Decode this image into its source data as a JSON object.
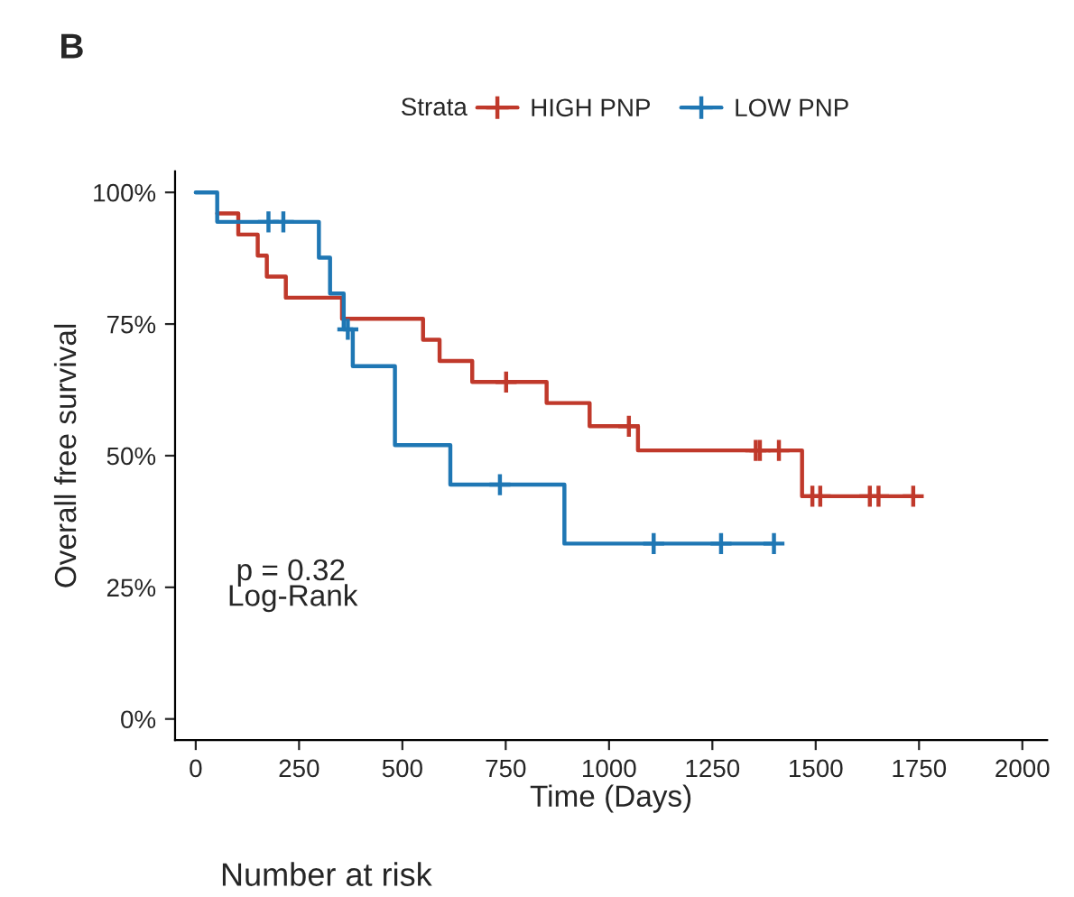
{
  "chart_data": {
    "type": "step",
    "title": "B",
    "xlabel": "Time (Days)",
    "ylabel": "Overall free survival",
    "legend_title": "Strata",
    "legend": "top",
    "annotations": [
      "p = 0.32",
      "Log-Rank",
      "Number at risk"
    ],
    "xlim": [
      -50,
      2060
    ],
    "xticks": [
      0,
      250,
      500,
      750,
      1000,
      1250,
      1500,
      1750,
      2000
    ],
    "ylim": [
      -4,
      104
    ],
    "yticks": [
      {
        "value": 0,
        "label": "0%"
      },
      {
        "value": 25,
        "label": "25%"
      },
      {
        "value": 50,
        "label": "50%"
      },
      {
        "value": 75,
        "label": "75%"
      },
      {
        "value": 100,
        "label": "100%"
      }
    ],
    "grid": false,
    "line_style": "solid",
    "series": [
      {
        "name": "HIGH PNP",
        "color": "#c0392b",
        "marker": "none",
        "x": [
          52,
          103,
          150,
          172,
          218,
          354,
          550,
          590,
          669,
          849,
          953,
          1070,
          1467,
          1740
        ],
        "values": [
          96,
          92,
          88,
          84,
          80,
          76,
          72,
          68,
          64,
          60,
          55.6,
          51,
          42.3,
          42.3
        ]
      },
      {
        "name": "LOW PNP",
        "color": "#1f77b4",
        "marker": "none",
        "x": [
          0,
          52,
          298,
          325,
          358,
          380,
          482,
          616,
          892,
          1399
        ],
        "values": [
          100,
          94.4,
          87.6,
          80.8,
          74,
          67,
          52,
          44.5,
          33.3,
          33.3
        ]
      },
      {
        "type": "scatter",
        "color": "#c0392b",
        "marker": "cross",
        "x": [
          751,
          1048,
          1355,
          1365,
          1411,
          1492,
          1511,
          1631,
          1652,
          1736
        ],
        "values": [
          64,
          55.6,
          51,
          51,
          51,
          42.3,
          42.3,
          42.3,
          42.3,
          42.3
        ]
      },
      {
        "type": "scatter",
        "color": "#1f77b4",
        "marker": "cross",
        "x": [
          176,
          212,
          368,
          736,
          1108,
          1271,
          1399
        ],
        "values": [
          94.4,
          94.4,
          74,
          44.5,
          33.3,
          33.3,
          33.3
        ]
      }
    ]
  }
}
